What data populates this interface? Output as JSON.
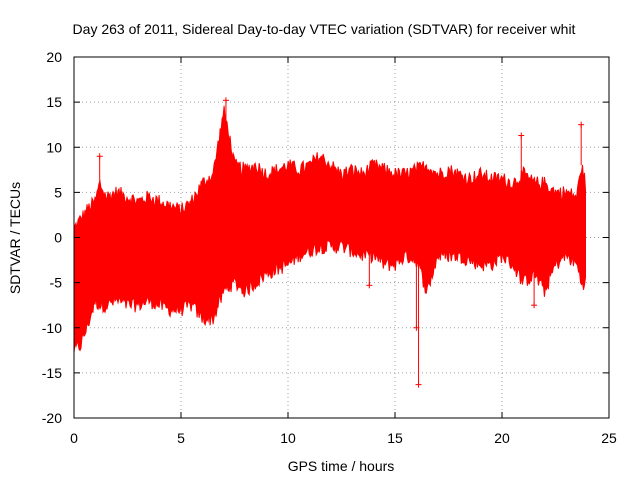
{
  "chart_data": {
    "type": "scatter",
    "title": "Day 263 of 2011, Sidereal Day-to-day VTEC variation (SDTVAR) for receiver whit",
    "xlabel": "GPS time / hours",
    "ylabel": "SDTVAR / TECUs",
    "xlim": [
      0,
      25
    ],
    "ylim": [
      -20,
      20
    ],
    "xticks": [
      0,
      5,
      10,
      15,
      20,
      25
    ],
    "xtick_labels": [
      "0",
      "5",
      "10",
      "15",
      "20",
      "25"
    ],
    "yticks": [
      -20,
      -15,
      -10,
      -5,
      0,
      5,
      10,
      15,
      20
    ],
    "ytick_labels": [
      "-20",
      "-15",
      "-10",
      "-5",
      "0",
      "5",
      "10",
      "15",
      "20"
    ],
    "grid": true,
    "series": [
      {
        "name": "SDTVAR",
        "color": "#ff0000",
        "style": "dense error-bar band",
        "upper_envelope": {
          "x": [
            0,
            0.3,
            0.6,
            1.0,
            1.2,
            1.5,
            2.0,
            2.5,
            3.0,
            3.5,
            4.0,
            4.5,
            5.0,
            5.5,
            6.0,
            6.5,
            7.0,
            7.2,
            7.5,
            8.0,
            8.5,
            9.0,
            9.5,
            10.0,
            10.5,
            11.0,
            11.5,
            12.0,
            12.5,
            13.0,
            13.5,
            14.0,
            14.5,
            15.0,
            15.5,
            16.0,
            16.5,
            17.0,
            17.5,
            18.0,
            18.5,
            19.0,
            19.5,
            20.0,
            20.5,
            21.0,
            21.5,
            22.0,
            22.5,
            23.0,
            23.5,
            23.7,
            23.9
          ],
          "y": [
            1,
            2,
            3,
            4,
            6,
            4.5,
            5,
            4.5,
            4,
            4.5,
            4,
            3.5,
            3,
            4,
            6,
            7,
            14,
            12,
            8,
            7.5,
            8,
            7,
            7.5,
            8,
            7.5,
            8,
            9,
            8,
            7,
            7.5,
            7,
            8,
            7.5,
            7,
            7,
            7.5,
            8,
            7,
            7.5,
            7,
            6.5,
            7,
            6.5,
            6.5,
            6,
            7,
            6,
            6,
            5,
            5,
            4.5,
            8,
            6
          ]
        },
        "lower_envelope": {
          "x": [
            0,
            0.3,
            0.6,
            1.0,
            1.2,
            1.5,
            2.0,
            2.5,
            3.0,
            3.5,
            4.0,
            4.5,
            5.0,
            5.5,
            6.0,
            6.5,
            7.0,
            7.2,
            7.5,
            8.0,
            8.5,
            9.0,
            9.5,
            10.0,
            10.5,
            11.0,
            11.5,
            12.0,
            12.5,
            13.0,
            13.5,
            14.0,
            14.5,
            15.0,
            15.5,
            16.0,
            16.5,
            17.0,
            17.5,
            18.0,
            18.5,
            19.0,
            19.5,
            20.0,
            20.5,
            21.0,
            21.5,
            22.0,
            22.5,
            23.0,
            23.5,
            23.7,
            23.9
          ],
          "y": [
            -12.5,
            -12,
            -10,
            -7,
            -7.5,
            -7.5,
            -7,
            -7.5,
            -7.5,
            -7,
            -7.5,
            -8,
            -8,
            -7.5,
            -9,
            -9,
            -6,
            -5.5,
            -5,
            -6,
            -5,
            -4,
            -3.5,
            -3,
            -2,
            -1.5,
            -1,
            -1,
            -1,
            -1.5,
            -2,
            -2,
            -3,
            -3,
            -2,
            -2.5,
            -6,
            -2,
            -2,
            -2,
            -2.5,
            -3,
            -3,
            -2,
            -3,
            -5,
            -4,
            -6,
            -3,
            -2,
            -3,
            -5,
            -5
          ]
        },
        "spikes": [
          {
            "x": 1.2,
            "y": 9
          },
          {
            "x": 7.1,
            "y": 15.2
          },
          {
            "x": 13.8,
            "y": -5.3
          },
          {
            "x": 16.1,
            "y": -16.3
          },
          {
            "x": 16.0,
            "y": -10
          },
          {
            "x": 20.9,
            "y": 11.3
          },
          {
            "x": 21.5,
            "y": -7.5
          },
          {
            "x": 23.7,
            "y": 12.5
          }
        ]
      }
    ]
  }
}
